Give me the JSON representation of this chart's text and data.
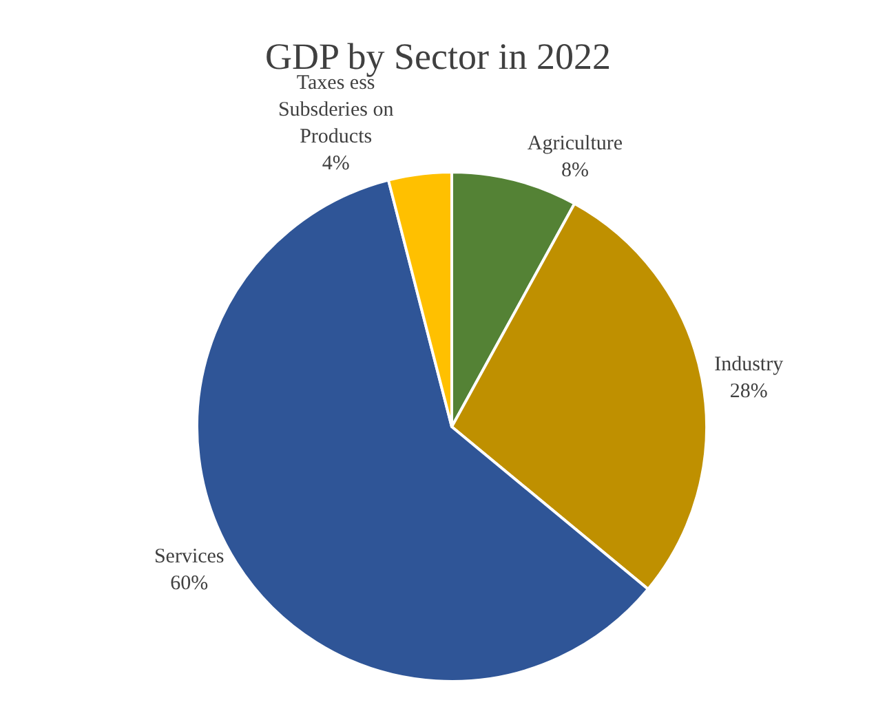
{
  "chart_data": {
    "type": "pie",
    "title": "GDP by Sector in 2022",
    "categories": [
      "Agriculture",
      "Industry",
      "Services",
      "Taxes ess Subsderies on Products"
    ],
    "values": [
      8,
      28,
      60,
      4
    ],
    "colors": [
      "#548235",
      "#bf9000",
      "#2f5597",
      "#ffc000"
    ],
    "value_labels": [
      "8%",
      "28%",
      "60%",
      "4%"
    ],
    "legend": false
  }
}
